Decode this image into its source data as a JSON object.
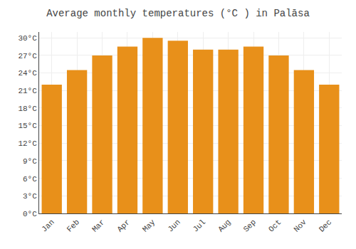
{
  "chart_data": {
    "type": "bar",
    "title": "Average monthly temperatures (°C ) in Palāsa",
    "categories": [
      "Jan",
      "Feb",
      "Mar",
      "Apr",
      "May",
      "Jun",
      "Jul",
      "Aug",
      "Sep",
      "Oct",
      "Nov",
      "Dec"
    ],
    "values": [
      22,
      24.5,
      27,
      28.5,
      30,
      29.5,
      28,
      28,
      28.5,
      27,
      24.5,
      22
    ],
    "color": "#E8901A",
    "ylim": [
      0,
      31
    ],
    "yticks": [
      {
        "value": 0,
        "label": "0°C"
      },
      {
        "value": 3,
        "label": "3°C"
      },
      {
        "value": 6,
        "label": "6°C"
      },
      {
        "value": 9,
        "label": "9°C"
      },
      {
        "value": 12,
        "label": "12°C"
      },
      {
        "value": 15,
        "label": "15°C"
      },
      {
        "value": 18,
        "label": "18°C"
      },
      {
        "value": 21,
        "label": "21°C"
      },
      {
        "value": 24,
        "label": "24°C"
      },
      {
        "value": 27,
        "label": "27°C"
      },
      {
        "value": 30,
        "label": "30°C"
      }
    ],
    "grid": true
  }
}
